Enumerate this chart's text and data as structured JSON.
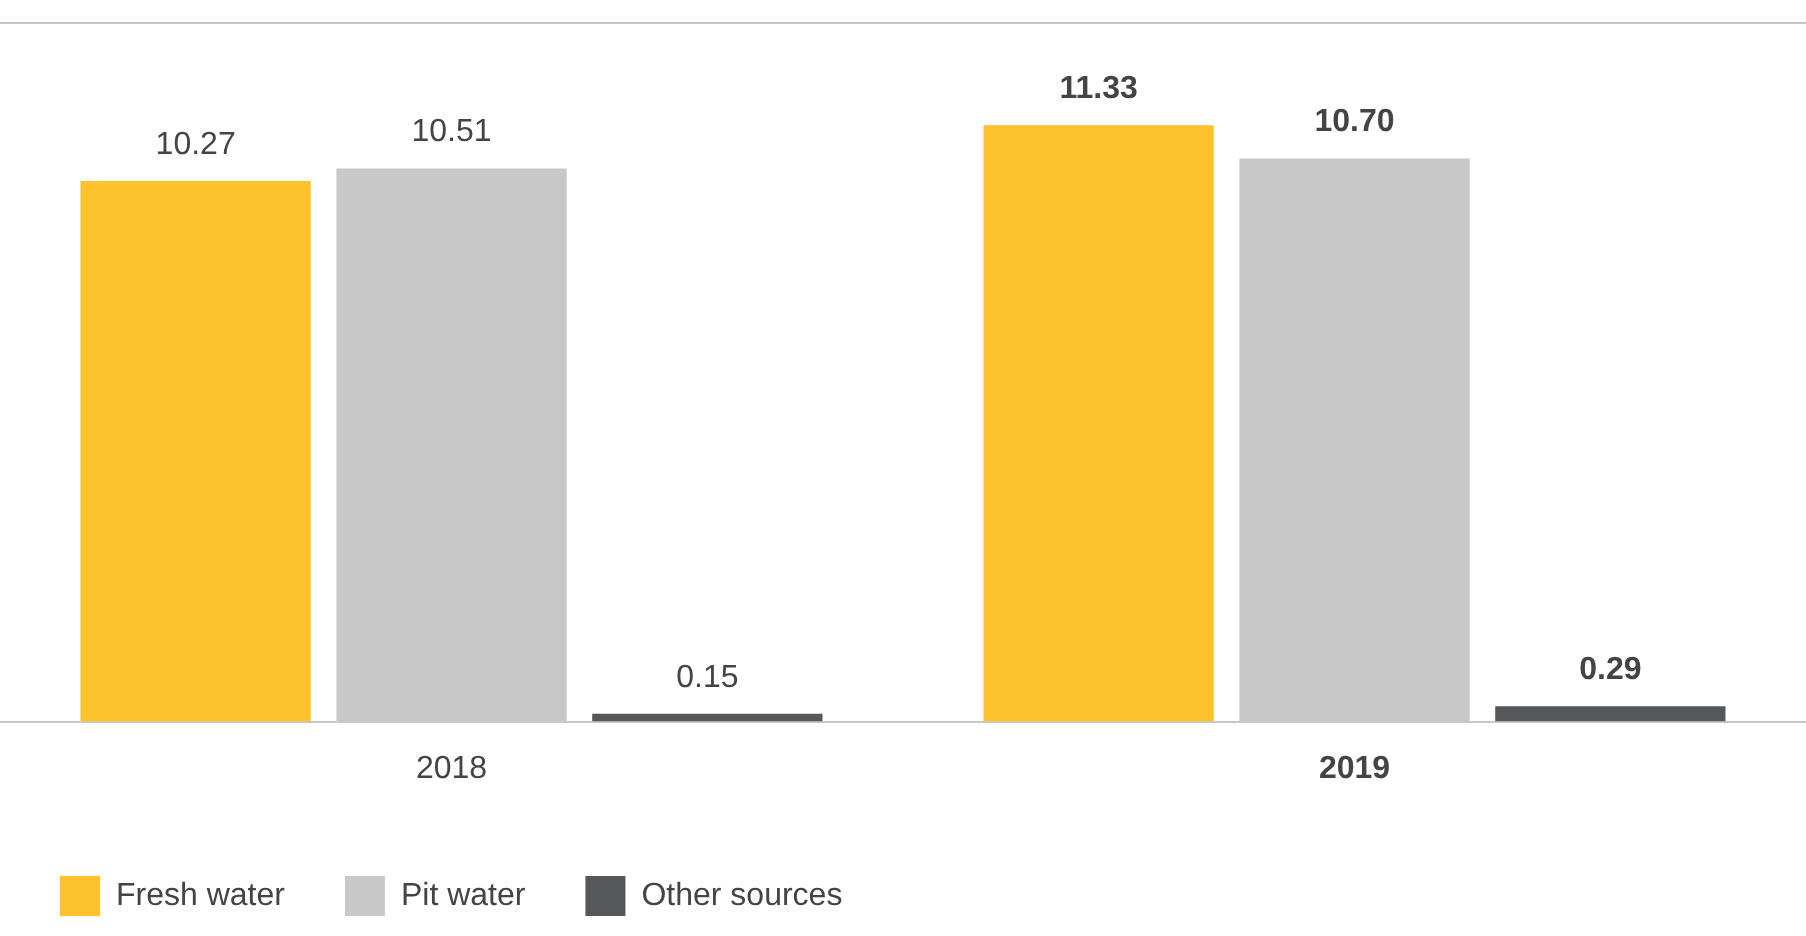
{
  "chart_data": {
    "type": "bar",
    "categories": [
      "2018",
      "2019"
    ],
    "series": [
      {
        "name": "Fresh water",
        "color": "#fec22d",
        "values": [
          10.27,
          11.33
        ],
        "value_labels": [
          "10.27",
          "11.33"
        ]
      },
      {
        "name": "Pit water",
        "color": "#c8c8c8",
        "values": [
          10.51,
          10.7
        ],
        "value_labels": [
          "10.51",
          "10.70"
        ]
      },
      {
        "name": "Other sources",
        "color": "#55585a",
        "values": [
          0.15,
          0.29
        ],
        "value_labels": [
          "0.15",
          "0.29"
        ]
      }
    ],
    "legend": "bottom left",
    "grid": false
  }
}
